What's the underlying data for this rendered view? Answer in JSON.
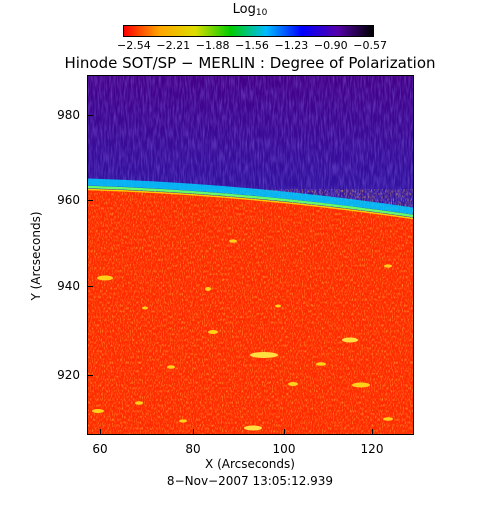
{
  "colorbar": {
    "title_main": "Log",
    "title_sub": "10",
    "ticks": [
      "−2.54",
      "−2.21",
      "−1.88",
      "−1.56",
      "−1.23",
      "−0.90",
      "−0.57"
    ],
    "colors": [
      "#ff0000",
      "#ffa500",
      "#dddd00",
      "#00cc00",
      "#00bbff",
      "#0000ff",
      "#5500aa",
      "#000000"
    ]
  },
  "title": "Hinode SOT/SP − MERLIN : Degree of Polarization",
  "axes": {
    "xlabel": "X (Arcseconds)",
    "ylabel": "Y (Arcseconds)",
    "xticks": [
      "60",
      "80",
      "100",
      "120"
    ],
    "yticks": [
      "980",
      "960",
      "940",
      "920"
    ]
  },
  "footer": {
    "date": "8−Nov−2007 13:05:12.939"
  },
  "image_colors": {
    "disk": "#ff2a00",
    "disk_mottle": "#ff6a10",
    "limb": "#00e0ff",
    "limb_green": "#66ff66",
    "space_near": "#1144ff",
    "space_far": "#440088"
  }
}
